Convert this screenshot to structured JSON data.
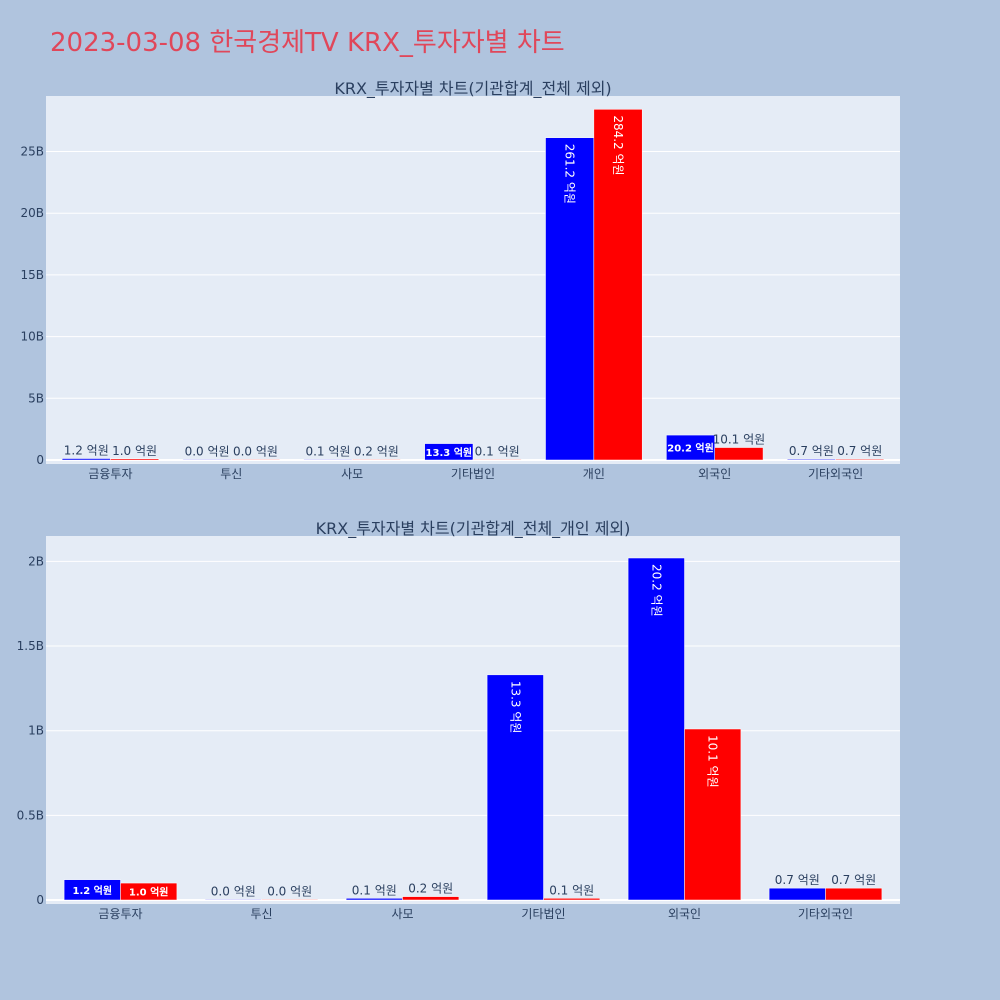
{
  "page": {
    "title": "2023-03-08 한국경제TV KRX_투자자별 차트",
    "background": "#b0c4de",
    "title_color": "#e0475a",
    "plot_background": "#e5ecf6",
    "colors": [
      "#0000ff",
      "#ff0000"
    ]
  },
  "chart_data": [
    {
      "type": "bar",
      "title": "KRX_투자자별 차트(기관합계_전체 제외)",
      "xlabel": "",
      "ylabel": "",
      "categories": [
        "금융투자",
        "투신",
        "사모",
        "기타법인",
        "개인",
        "외국인",
        "기타외국인"
      ],
      "ylim": [
        0,
        29500000000
      ],
      "y_ticks": [
        0,
        5000000000,
        10000000000,
        15000000000,
        20000000000,
        25000000000
      ],
      "y_tick_labels": [
        "0",
        "5B",
        "10B",
        "15B",
        "20B",
        "25B"
      ],
      "grid": true,
      "series": [
        {
          "color": "#0000ff",
          "values": [
            120000000,
            0,
            10000000,
            1330000000,
            26120000000,
            2020000000,
            70000000
          ],
          "labels": [
            "1.2 억원",
            "0.0 억원",
            "0.1 억원",
            "13.3 억원",
            "261.2 억원",
            "20.2 억원",
            "0.7 억원"
          ]
        },
        {
          "color": "#ff0000",
          "values": [
            100000000,
            0,
            20000000,
            10000000,
            28420000000,
            1010000000,
            70000000
          ],
          "labels": [
            "1.0 억원",
            "0.0 억원",
            "0.2 억원",
            "0.1 억원",
            "284.2 억원",
            "10.1 억원",
            "0.7 억원"
          ]
        }
      ]
    },
    {
      "type": "bar",
      "title": "KRX_투자자별 차트(기관합계_전체_개인 제외)",
      "xlabel": "",
      "ylabel": "",
      "categories": [
        "금융투자",
        "투신",
        "사모",
        "기타법인",
        "외국인",
        "기타외국인"
      ],
      "ylim": [
        0,
        2150000000
      ],
      "y_ticks": [
        0,
        500000000,
        1000000000,
        1500000000,
        2000000000
      ],
      "y_tick_labels": [
        "0",
        "0.5B",
        "1B",
        "1.5B",
        "2B"
      ],
      "grid": true,
      "series": [
        {
          "color": "#0000ff",
          "values": [
            120000000,
            0,
            10000000,
            1330000000,
            2020000000,
            70000000
          ],
          "labels": [
            "1.2 억원",
            "0.0 억원",
            "0.1 억원",
            "13.3 억원",
            "20.2 억원",
            "0.7 억원"
          ]
        },
        {
          "color": "#ff0000",
          "values": [
            100000000,
            0,
            20000000,
            10000000,
            1010000000,
            70000000
          ],
          "labels": [
            "1.0 억원",
            "0.0 억원",
            "0.2 억원",
            "0.1 억원",
            "10.1 억원",
            "0.7 억원"
          ]
        }
      ]
    }
  ]
}
